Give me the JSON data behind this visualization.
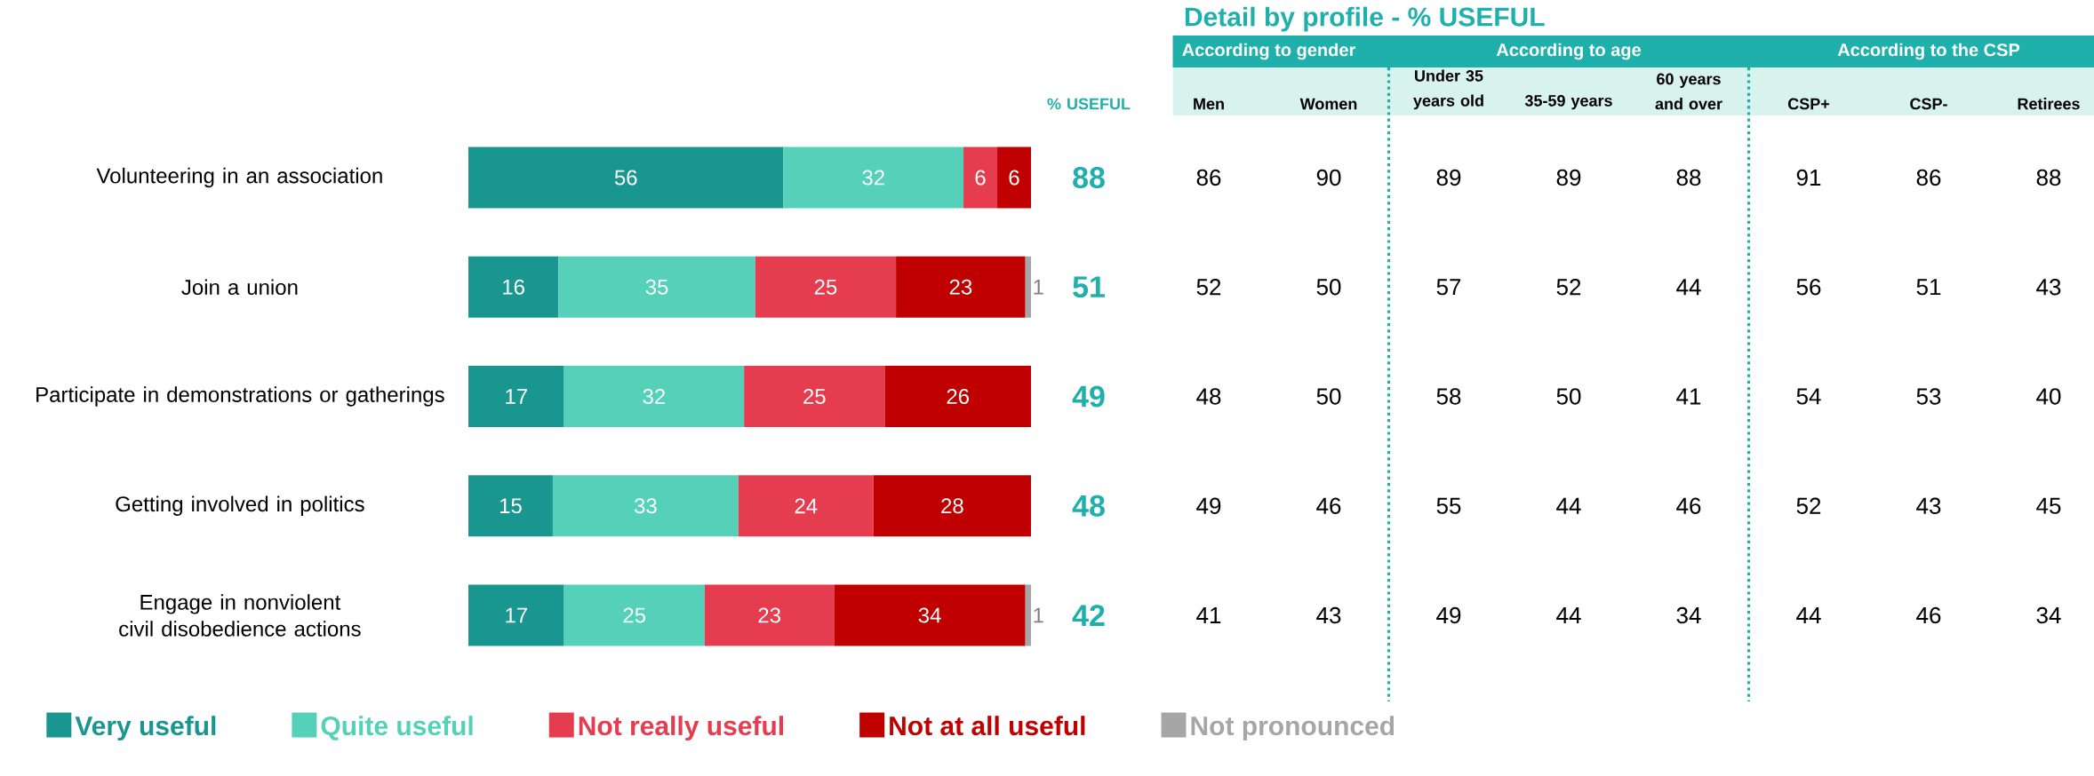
{
  "chart_data": [
    {
      "type": "bar",
      "orientation": "horizontal",
      "stacked": true,
      "tick_labels": "y",
      "data_labels": true,
      "legend": "bottom",
      "categories": [
        "Volunteering in an association",
        "Join a union",
        "Participate in demonstrations or gatherings",
        "Getting involved in politics",
        "Engage in nonviolent civil disobedience actions"
      ],
      "series": [
        {
          "name": "Very useful",
          "color": "#1a9690",
          "values": [
            56,
            16,
            17,
            15,
            17
          ]
        },
        {
          "name": "Quite useful",
          "color": "#55d1b9",
          "values": [
            32,
            35,
            32,
            33,
            25
          ]
        },
        {
          "name": "Not really useful",
          "color": "#e63c50",
          "values": [
            6,
            25,
            25,
            24,
            23
          ]
        },
        {
          "name": "Not at all useful",
          "color": "#c00000",
          "values": [
            6,
            23,
            26,
            28,
            34
          ]
        },
        {
          "name": "Not pronounced",
          "color": "#a6a6a6",
          "values": [
            null,
            1,
            null,
            null,
            1
          ]
        }
      ]
    },
    {
      "type": "heatmap",
      "title": "Detail by profile - % USEFUL",
      "tick_labels": "x",
      "data_labels": true,
      "annotations": [
        "According to gender",
        "According to age",
        "According to the CSP"
      ],
      "categories": [
        "% USEFUL",
        "Men",
        "Women",
        "Under 35 years old",
        "35-59 years",
        "60 years and over",
        "CSP+",
        "CSP-",
        "Retirees"
      ],
      "y_categories": [
        null,
        null,
        null,
        null,
        null
      ],
      "cells": [
        [
          88,
          86,
          90,
          89,
          89,
          88,
          91,
          86,
          88
        ],
        [
          51,
          52,
          50,
          57,
          52,
          44,
          56,
          51,
          43
        ],
        [
          49,
          48,
          50,
          58,
          50,
          41,
          54,
          53,
          40
        ],
        [
          48,
          49,
          46,
          55,
          44,
          46,
          52,
          43,
          45
        ],
        [
          42,
          41,
          43,
          49,
          44,
          34,
          44,
          46,
          34
        ]
      ]
    }
  ]
}
